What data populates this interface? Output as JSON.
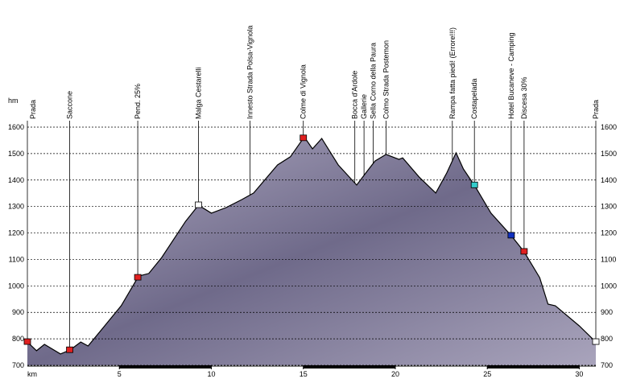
{
  "chart_data": {
    "type": "area",
    "y_label": "hm",
    "x_label": "km",
    "x": [
      0,
      0.5,
      0.93,
      1.8,
      2.33,
      2.9,
      3.3,
      4.2,
      5.1,
      6.05,
      6.6,
      7.3,
      8.6,
      9.3,
      10.0,
      10.8,
      11.65,
      12.3,
      13.6,
      14.3,
      15.05,
      15.5,
      16.0,
      16.9,
      17.9,
      18.4,
      18.9,
      19.5,
      20.2,
      20.4,
      21.3,
      22.2,
      22.8,
      23.3,
      23.7,
      24.35,
      25.2,
      26.3,
      27.0,
      27.85,
      28.3,
      28.7,
      30.0,
      30.9
    ],
    "values": [
      788,
      755,
      779,
      743,
      758,
      788,
      773,
      849,
      925,
      1037,
      1047,
      1107,
      1244,
      1305,
      1275,
      1296,
      1326,
      1351,
      1457,
      1488,
      1563,
      1518,
      1557,
      1457,
      1381,
      1427,
      1472,
      1497,
      1478,
      1484,
      1411,
      1351,
      1427,
      1503,
      1442,
      1375,
      1275,
      1190,
      1129,
      1031,
      931,
      925,
      849,
      788
    ],
    "color": "#7d7894",
    "xlim": [
      0,
      30.9
    ],
    "ylim": [
      700,
      1600
    ],
    "xticks": [
      5,
      10,
      15,
      20,
      25,
      30
    ],
    "yticks": [
      700,
      800,
      900,
      1000,
      1100,
      1200,
      1300,
      1400,
      1500,
      1600
    ],
    "grid": true,
    "waypoints": [
      {
        "label": "Prada",
        "x": 0,
        "color": "#e02020"
      },
      {
        "label": "Saccone",
        "x": 2.3,
        "color": "#e02020"
      },
      {
        "label": "Pend. 25%",
        "x": 6.0,
        "color": "#e02020"
      },
      {
        "label": "Malga Cestarelli",
        "x": 9.3,
        "color": "#ffffff"
      },
      {
        "label": "Innesto Strada Polsa-Vignola",
        "x": 12.1,
        "color": null
      },
      {
        "label": "Colme di Vignola",
        "x": 15.0,
        "color": "#e02020"
      },
      {
        "label": "Bocca d'Ardole",
        "x": 17.8,
        "color": null
      },
      {
        "label": "Gallerie",
        "x": 18.3,
        "color": null
      },
      {
        "label": "Sella Corno della Paura",
        "x": 18.8,
        "color": null
      },
      {
        "label": "Colmo Strada Postemon",
        "x": 19.5,
        "color": null
      },
      {
        "label": "Rampa fatta piedi! (Errore!!!)",
        "x": 23.1,
        "color": null
      },
      {
        "label": "Costapelada",
        "x": 24.3,
        "color": "#33cccc"
      },
      {
        "label": "Hotel Bucaneve - Camping",
        "x": 26.3,
        "color": "#1030c0"
      },
      {
        "label": "Discesa 30%",
        "x": 27.0,
        "color": "#e02020"
      },
      {
        "label": "Prada",
        "x": 30.9,
        "color": "#ffffff"
      }
    ]
  }
}
